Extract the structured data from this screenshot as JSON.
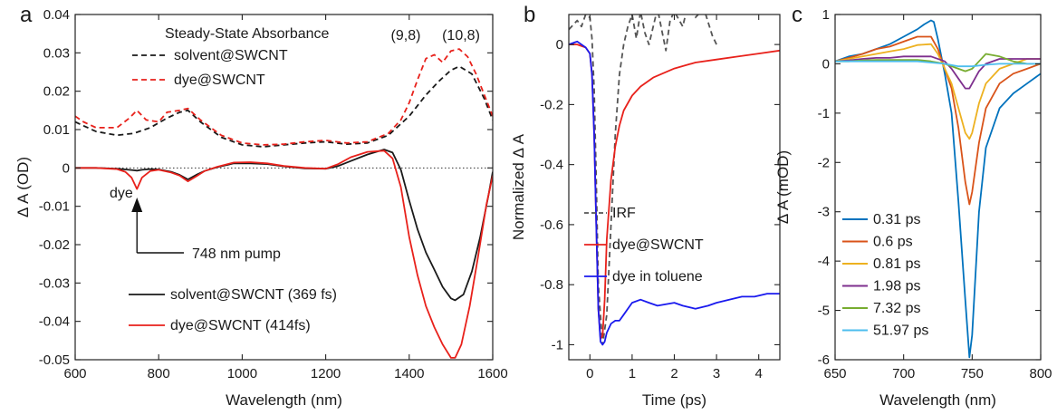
{
  "chart_data": [
    {
      "panel": "a",
      "type": "line",
      "xlabel": "Wavelength (nm)",
      "ylabel": "Δ A (OD)",
      "xlim": [
        600,
        1600
      ],
      "ylim": [
        -0.05,
        0.04
      ],
      "xticks": [
        600,
        800,
        1000,
        1200,
        1400,
        1600
      ],
      "yticks": [
        -0.05,
        -0.04,
        -0.03,
        -0.02,
        -0.01,
        0,
        0.01,
        0.02,
        0.03,
        0.04
      ],
      "ytick_labels": [
        "-0.05",
        "-0.04",
        "-0.03",
        "-0.02",
        "-0.01",
        "0",
        "0.01",
        "0.02",
        "0.03",
        "0.04"
      ],
      "legend_top_title": "Steady-State Absorbance",
      "annotations": {
        "peak_left": "(9,8)",
        "peak_right": "(10,8)",
        "dye_label": "dye",
        "pump_label": "748 nm pump"
      },
      "series": [
        {
          "name": "solvent@SWCNT",
          "color": "#1a1a1a",
          "style": "dashed",
          "x": [
            600,
            620,
            650,
            700,
            740,
            780,
            820,
            850,
            870,
            900,
            950,
            1000,
            1050,
            1100,
            1150,
            1200,
            1250,
            1300,
            1350,
            1400,
            1440,
            1470,
            1500,
            1520,
            1550,
            1580,
            1600
          ],
          "y": [
            0.012,
            0.011,
            0.0095,
            0.0085,
            0.009,
            0.0105,
            0.013,
            0.0145,
            0.015,
            0.012,
            0.008,
            0.006,
            0.0055,
            0.006,
            0.0065,
            0.0068,
            0.0062,
            0.0065,
            0.0085,
            0.0135,
            0.019,
            0.0225,
            0.0255,
            0.0265,
            0.0245,
            0.018,
            0.0125
          ]
        },
        {
          "name": "dye@SWCNT",
          "color": "#e8211b",
          "style": "dashed",
          "x": [
            600,
            620,
            650,
            700,
            730,
            748,
            770,
            800,
            820,
            850,
            870,
            900,
            950,
            1000,
            1050,
            1100,
            1150,
            1200,
            1250,
            1300,
            1350,
            1380,
            1400,
            1420,
            1440,
            1460,
            1480,
            1500,
            1520,
            1540,
            1560,
            1580,
            1600
          ],
          "y": [
            0.0135,
            0.012,
            0.0105,
            0.0105,
            0.013,
            0.015,
            0.0125,
            0.012,
            0.0145,
            0.015,
            0.0155,
            0.0125,
            0.0085,
            0.0065,
            0.006,
            0.0062,
            0.0068,
            0.0072,
            0.0065,
            0.0068,
            0.009,
            0.0125,
            0.017,
            0.023,
            0.0285,
            0.0295,
            0.0275,
            0.0305,
            0.031,
            0.029,
            0.0245,
            0.019,
            0.0135
          ]
        },
        {
          "name": "solvent@SWCNT (369 fs)",
          "color": "#1a1a1a",
          "style": "solid",
          "x": [
            600,
            650,
            700,
            720,
            740,
            748,
            760,
            780,
            800,
            830,
            850,
            870,
            890,
            910,
            940,
            980,
            1020,
            1060,
            1100,
            1150,
            1200,
            1230,
            1260,
            1300,
            1340,
            1360,
            1380,
            1400,
            1420,
            1440,
            1460,
            1480,
            1500,
            1510,
            1530,
            1550,
            1570,
            1590,
            1600
          ],
          "y": [
            0.0,
            0.0,
            -0.0002,
            -0.0004,
            -0.0006,
            -0.0007,
            -0.0005,
            -0.0003,
            -0.0004,
            -0.001,
            -0.0018,
            -0.003,
            -0.0018,
            -0.0008,
            0.0002,
            0.0012,
            0.0012,
            0.001,
            0.0004,
            -0.0001,
            -0.0002,
            0.0005,
            0.0018,
            0.0035,
            0.0048,
            0.004,
            -0.0005,
            -0.0085,
            -0.016,
            -0.022,
            -0.0265,
            -0.031,
            -0.034,
            -0.0345,
            -0.033,
            -0.027,
            -0.018,
            -0.007,
            -0.001
          ]
        },
        {
          "name": "dye@SWCNT (414fs)",
          "color": "#e8211b",
          "style": "solid",
          "x": [
            600,
            650,
            700,
            720,
            735,
            748,
            760,
            780,
            800,
            830,
            850,
            870,
            890,
            910,
            940,
            980,
            1020,
            1060,
            1100,
            1150,
            1200,
            1230,
            1260,
            1300,
            1340,
            1360,
            1380,
            1400,
            1420,
            1440,
            1460,
            1480,
            1500,
            1510,
            1525,
            1545,
            1565,
            1585,
            1600
          ],
          "y": [
            0.0,
            0.0,
            -0.0003,
            -0.001,
            -0.0025,
            -0.0055,
            -0.0025,
            -0.0008,
            -0.0005,
            -0.0012,
            -0.002,
            -0.0035,
            -0.0022,
            -0.0008,
            0.0003,
            0.0014,
            0.0015,
            0.0012,
            0.0005,
            0.0,
            -0.0002,
            0.001,
            0.0028,
            0.0042,
            0.0045,
            0.0025,
            -0.005,
            -0.018,
            -0.028,
            -0.036,
            -0.0415,
            -0.046,
            -0.0495,
            -0.0495,
            -0.046,
            -0.036,
            -0.023,
            -0.0095,
            -0.002
          ]
        }
      ]
    },
    {
      "panel": "b",
      "type": "line",
      "xlabel": "Time (ps)",
      "ylabel": "Normalized Δ A",
      "xlim": [
        -0.5,
        4.5
      ],
      "ylim": [
        -1.05,
        0.1
      ],
      "xticks": [
        0,
        1,
        2,
        3,
        4
      ],
      "yticks": [
        -1,
        -0.8,
        -0.6,
        -0.4,
        -0.2,
        0
      ],
      "ytick_labels": [
        "-1",
        "-0.8",
        "-0.6",
        "-0.4",
        "-0.2",
        "0"
      ],
      "series": [
        {
          "name": "IRF",
          "color": "#555555",
          "style": "dashed",
          "x": [
            -0.5,
            -0.3,
            -0.2,
            -0.1,
            0.0,
            0.05,
            0.1,
            0.15,
            0.2,
            0.3,
            0.4,
            0.5,
            0.6,
            0.7,
            0.8,
            0.9,
            1.0,
            1.1,
            1.2,
            1.3,
            1.4,
            1.5,
            1.6,
            1.7,
            1.8,
            1.9,
            2.0,
            2.2,
            2.3,
            2.5,
            2.7,
            2.9,
            3.0
          ],
          "y": [
            0.05,
            0.08,
            0.06,
            0.1,
            0.09,
            0.02,
            -0.15,
            -0.45,
            -0.8,
            -1.0,
            -0.9,
            -0.6,
            -0.3,
            -0.1,
            0.0,
            0.06,
            0.1,
            0.02,
            0.11,
            0.04,
            0.0,
            0.06,
            0.12,
            0.05,
            -0.02,
            0.08,
            0.11,
            0.06,
            0.12,
            0.09,
            0.12,
            0.03,
            0.0
          ]
        },
        {
          "name": "dye@SWCNT",
          "color": "#e8211b",
          "style": "solid",
          "x": [
            -0.5,
            -0.3,
            -0.1,
            0.0,
            0.05,
            0.1,
            0.15,
            0.2,
            0.25,
            0.3,
            0.35,
            0.4,
            0.5,
            0.6,
            0.7,
            0.8,
            1.0,
            1.2,
            1.5,
            2.0,
            2.5,
            3.0,
            3.5,
            4.0,
            4.5
          ],
          "y": [
            0.0,
            0.0,
            -0.01,
            -0.03,
            -0.1,
            -0.3,
            -0.6,
            -0.88,
            -0.98,
            -0.97,
            -0.85,
            -0.65,
            -0.45,
            -0.34,
            -0.27,
            -0.22,
            -0.17,
            -0.14,
            -0.11,
            -0.08,
            -0.06,
            -0.05,
            -0.04,
            -0.03,
            -0.02
          ]
        },
        {
          "name": "dye in toluene",
          "color": "#1a1aee",
          "style": "solid",
          "x": [
            -0.5,
            -0.3,
            -0.1,
            0.0,
            0.05,
            0.1,
            0.15,
            0.2,
            0.25,
            0.3,
            0.35,
            0.4,
            0.5,
            0.6,
            0.7,
            0.8,
            1.0,
            1.2,
            1.4,
            1.6,
            2.0,
            2.2,
            2.5,
            2.8,
            3.0,
            3.3,
            3.6,
            3.9,
            4.2,
            4.5
          ],
          "y": [
            0.0,
            0.01,
            -0.01,
            -0.03,
            -0.1,
            -0.3,
            -0.6,
            -0.88,
            -0.99,
            -1.0,
            -0.99,
            -0.96,
            -0.93,
            -0.92,
            -0.92,
            -0.9,
            -0.86,
            -0.85,
            -0.86,
            -0.87,
            -0.86,
            -0.87,
            -0.88,
            -0.87,
            -0.86,
            -0.85,
            -0.84,
            -0.84,
            -0.83,
            -0.83
          ]
        }
      ]
    },
    {
      "panel": "c",
      "type": "line",
      "xlabel": "Wavelength (nm)",
      "ylabel": "Δ A (mOD)",
      "xlim": [
        650,
        800
      ],
      "ylim": [
        -6,
        1
      ],
      "xticks": [
        650,
        700,
        750,
        800
      ],
      "yticks": [
        -6,
        -5,
        -4,
        -3,
        -2,
        -1,
        0,
        1
      ],
      "ytick_labels": [
        "-6",
        "-5",
        "-4",
        "-3",
        "-2",
        "-1",
        "0",
        "1"
      ],
      "series": [
        {
          "name": "0.31 ps",
          "color": "#0072bd",
          "style": "solid",
          "x": [
            650,
            660,
            670,
            680,
            690,
            700,
            710,
            715,
            720,
            722,
            725,
            730,
            735,
            740,
            745,
            748,
            750,
            755,
            760,
            770,
            780,
            790,
            800
          ],
          "y": [
            0.05,
            0.15,
            0.2,
            0.3,
            0.4,
            0.55,
            0.7,
            0.8,
            0.88,
            0.85,
            0.5,
            -0.2,
            -1.0,
            -2.8,
            -4.8,
            -5.95,
            -5.5,
            -3.0,
            -1.7,
            -0.9,
            -0.6,
            -0.4,
            -0.2
          ]
        },
        {
          "name": "0.6 ps",
          "color": "#d95319",
          "style": "solid",
          "x": [
            650,
            660,
            670,
            680,
            690,
            700,
            710,
            720,
            725,
            730,
            735,
            740,
            745,
            748,
            750,
            755,
            760,
            770,
            780,
            790,
            800
          ],
          "y": [
            0.05,
            0.12,
            0.2,
            0.3,
            0.35,
            0.45,
            0.55,
            0.55,
            0.3,
            -0.1,
            -0.5,
            -1.3,
            -2.4,
            -2.85,
            -2.6,
            -1.6,
            -0.9,
            -0.4,
            -0.2,
            -0.1,
            0.0
          ]
        },
        {
          "name": "0.81 ps",
          "color": "#edb120",
          "style": "solid",
          "x": [
            650,
            660,
            670,
            680,
            690,
            700,
            710,
            720,
            725,
            730,
            735,
            740,
            745,
            748,
            750,
            755,
            760,
            770,
            780,
            790,
            800
          ],
          "y": [
            0.05,
            0.1,
            0.15,
            0.2,
            0.25,
            0.3,
            0.38,
            0.4,
            0.2,
            -0.1,
            -0.4,
            -0.9,
            -1.4,
            -1.52,
            -1.4,
            -0.8,
            -0.4,
            -0.1,
            0.0,
            0.1,
            0.1
          ]
        },
        {
          "name": "1.98 ps",
          "color": "#7e2f8e",
          "style": "solid",
          "x": [
            650,
            660,
            670,
            680,
            690,
            700,
            710,
            720,
            730,
            735,
            740,
            745,
            748,
            750,
            755,
            760,
            770,
            780,
            790,
            800
          ],
          "y": [
            0.05,
            0.07,
            0.1,
            0.12,
            0.12,
            0.15,
            0.15,
            0.15,
            0.05,
            -0.1,
            -0.3,
            -0.5,
            -0.5,
            -0.4,
            -0.15,
            0.0,
            0.1,
            0.1,
            0.1,
            0.1
          ]
        },
        {
          "name": "7.32 ps",
          "color": "#77ac30",
          "style": "solid",
          "x": [
            650,
            660,
            670,
            680,
            690,
            700,
            710,
            720,
            730,
            740,
            745,
            750,
            755,
            760,
            770,
            780,
            790,
            800
          ],
          "y": [
            0.05,
            0.05,
            0.07,
            0.08,
            0.08,
            0.08,
            0.08,
            0.05,
            0.0,
            -0.1,
            -0.15,
            -0.1,
            0.05,
            0.2,
            0.15,
            0.05,
            0.0,
            0.0
          ]
        },
        {
          "name": "51.97 ps",
          "color": "#4dbeee",
          "style": "solid",
          "x": [
            650,
            670,
            690,
            710,
            730,
            740,
            750,
            760,
            770,
            780,
            790,
            800
          ],
          "y": [
            0.05,
            0.05,
            0.05,
            0.05,
            0.0,
            -0.05,
            -0.05,
            -0.02,
            0.0,
            0.0,
            0.0,
            0.0
          ]
        }
      ]
    }
  ]
}
